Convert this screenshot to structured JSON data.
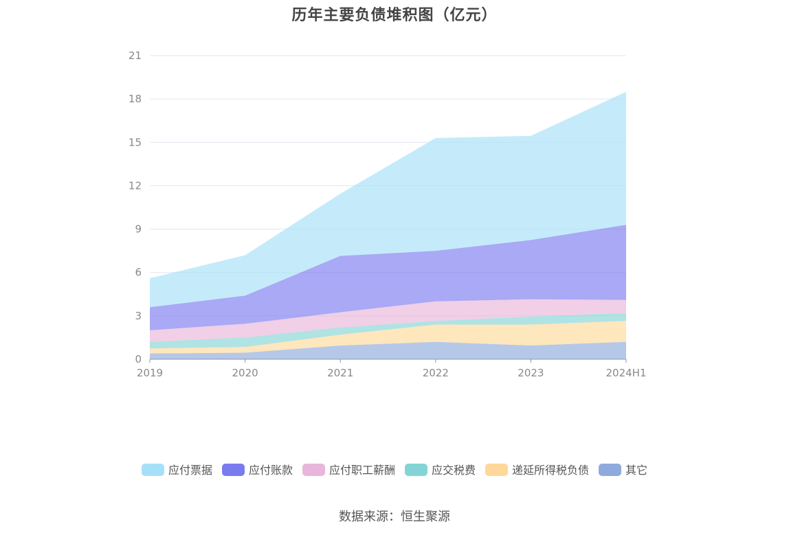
{
  "chart_data": {
    "type": "area",
    "stacked": true,
    "title": "历年主要负债堆积图（亿元）",
    "source": "数据来源：恒生聚源",
    "categories": [
      "2019",
      "2020",
      "2021",
      "2022",
      "2023",
      "2024H1"
    ],
    "ylim": [
      0,
      21
    ],
    "yticks": [
      "0",
      "3",
      "6",
      "9",
      "12",
      "15",
      "18",
      "21"
    ],
    "grid": true,
    "legend_position": "bottom",
    "series": [
      {
        "name": "其它",
        "color": "#8faadc",
        "values": [
          0.4,
          0.45,
          0.95,
          1.2,
          0.95,
          1.2
        ]
      },
      {
        "name": "递延所得税负债",
        "color": "#fdd89a",
        "values": [
          0.35,
          0.4,
          0.75,
          1.2,
          1.45,
          1.45
        ]
      },
      {
        "name": "应交税费",
        "color": "#84d4d6",
        "values": [
          0.45,
          0.65,
          0.5,
          0.25,
          0.55,
          0.55
        ]
      },
      {
        "name": "应付职工薪酬",
        "color": "#e8b6da",
        "values": [
          0.8,
          0.95,
          1.05,
          1.35,
          1.2,
          0.9
        ]
      },
      {
        "name": "应付账款",
        "color": "#7b7bf0",
        "values": [
          1.6,
          1.95,
          3.9,
          3.5,
          4.1,
          5.2
        ]
      },
      {
        "name": "应付票据",
        "color": "#a6e0f8",
        "values": [
          2.0,
          2.8,
          4.3,
          7.8,
          7.2,
          9.2
        ]
      }
    ],
    "legend_order": [
      "应付票据",
      "应付账款",
      "应付职工薪酬",
      "应交税费",
      "递延所得税负债",
      "其它"
    ]
  }
}
